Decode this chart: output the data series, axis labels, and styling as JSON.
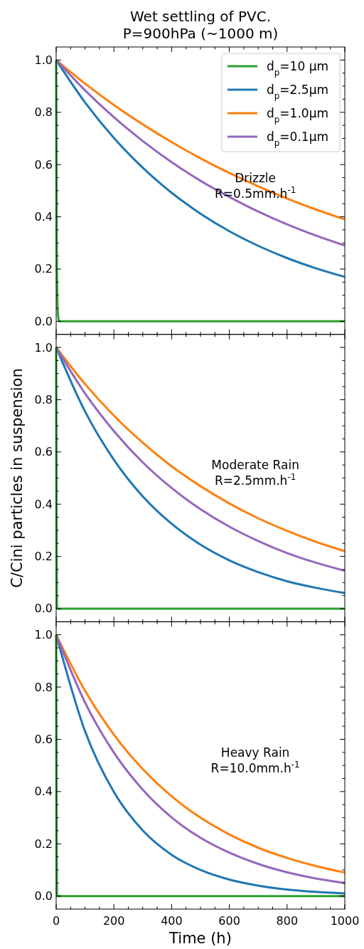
{
  "chart_data": [
    {
      "type": "line",
      "title": "Wet settling of PVC.\nP=900hPa (~1000 m)",
      "annotations": [
        "Drizzle",
        "R=0.5mm.h$^{-1}$"
      ],
      "xlim": [
        0,
        1000
      ],
      "ylim": [
        -0.05,
        1.05
      ],
      "xticks": [
        0,
        {
          "value": 50,
          "label": null
        },
        200,
        {
          "value": 100,
          "label": null
        },
        {
          "value": 150,
          "label": null
        },
        {
          "value": 250,
          "label": null
        },
        {
          "value": 300,
          "label": null
        },
        {
          "value": 350,
          "label": null
        },
        400,
        {
          "value": 450,
          "label": null
        },
        {
          "value": 500,
          "label": null
        },
        {
          "value": 550,
          "label": null
        },
        600,
        {
          "value": 650,
          "label": null
        },
        {
          "value": 700,
          "label": null
        },
        {
          "value": 750,
          "label": null
        },
        800,
        {
          "value": 850,
          "label": null
        },
        {
          "value": 900,
          "label": null
        },
        {
          "value": 950,
          "label": null
        },
        1000
      ],
      "yticks": [
        {
          "value": 0,
          "label": "0.0"
        },
        {
          "value": 0.05,
          "label": null
        },
        {
          "value": 0.1,
          "label": null
        },
        {
          "value": 0.15,
          "label": null
        },
        {
          "value": 0.2,
          "label": "0.2"
        },
        {
          "value": 0.25,
          "label": null
        },
        {
          "value": 0.3,
          "label": null
        },
        {
          "value": 0.35,
          "label": null
        },
        {
          "value": 0.4,
          "label": "0.4"
        },
        {
          "value": 0.45,
          "label": null
        },
        {
          "value": 0.5,
          "label": null
        },
        {
          "value": 0.55,
          "label": null
        },
        {
          "value": 0.6,
          "label": "0.6"
        },
        {
          "value": 0.65,
          "label": null
        },
        {
          "value": 0.7,
          "label": null
        },
        {
          "value": 0.75,
          "label": null
        },
        {
          "value": 0.8,
          "label": "0.8"
        },
        {
          "value": 0.85,
          "label": null
        },
        {
          "value": 0.9,
          "label": null
        },
        {
          "value": 0.95,
          "label": null
        },
        {
          "value": 1,
          "label": "1.0"
        }
      ],
      "tick_labels": "y",
      "legend": "top right",
      "grid": false,
      "series": [
        {
          "name": "d$_{p}$=10 μm",
          "color": "#2ca02c",
          "x": [
            0,
            2,
            5,
            10,
            1000
          ],
          "values": [
            1,
            0.3,
            0.05,
            0,
            0
          ]
        },
        {
          "name": "d$_{p}$=2.5μm",
          "color": "#1f77b4",
          "x": [
            0,
            100,
            200,
            300,
            400,
            500,
            600,
            700,
            800,
            900,
            1000
          ],
          "values": [
            1,
            0.838,
            0.702,
            0.588,
            0.492,
            0.412,
            0.345,
            0.289,
            0.242,
            0.203,
            0.17
          ]
        },
        {
          "name": "d$_{p}$=1.0μm",
          "color": "#ff7f0e",
          "x": [
            0,
            100,
            200,
            300,
            400,
            500,
            600,
            700,
            800,
            900,
            1000
          ],
          "values": [
            1,
            0.91,
            0.828,
            0.754,
            0.686,
            0.624,
            0.568,
            0.517,
            0.47,
            0.428,
            0.39
          ]
        },
        {
          "name": "d$_{p}$=0.1μm",
          "color": "#9467bd",
          "x": [
            0,
            100,
            200,
            300,
            400,
            500,
            600,
            700,
            800,
            900,
            1000
          ],
          "values": [
            1,
            0.884,
            0.781,
            0.69,
            0.609,
            0.538,
            0.476,
            0.42,
            0.371,
            0.328,
            0.29
          ]
        }
      ]
    },
    {
      "type": "line",
      "ylabel": "C/Cini particles in suspension",
      "annotations": [
        "Moderate Rain",
        "R=2.5mm.h$^{-1}$"
      ],
      "xlim": [
        0,
        1000
      ],
      "ylim": [
        -0.05,
        1.05
      ],
      "xticks": [
        0,
        {
          "value": 50,
          "label": null
        },
        200,
        {
          "value": 100,
          "label": null
        },
        {
          "value": 150,
          "label": null
        },
        {
          "value": 250,
          "label": null
        },
        {
          "value": 300,
          "label": null
        },
        {
          "value": 350,
          "label": null
        },
        400,
        {
          "value": 450,
          "label": null
        },
        {
          "value": 500,
          "label": null
        },
        {
          "value": 550,
          "label": null
        },
        600,
        {
          "value": 650,
          "label": null
        },
        {
          "value": 700,
          "label": null
        },
        {
          "value": 750,
          "label": null
        },
        800,
        {
          "value": 850,
          "label": null
        },
        {
          "value": 900,
          "label": null
        },
        {
          "value": 950,
          "label": null
        },
        1000
      ],
      "yticks": [
        {
          "value": 0,
          "label": "0.0"
        },
        {
          "value": 0.05,
          "label": null
        },
        {
          "value": 0.1,
          "label": null
        },
        {
          "value": 0.15,
          "label": null
        },
        {
          "value": 0.2,
          "label": "0.2"
        },
        {
          "value": 0.25,
          "label": null
        },
        {
          "value": 0.3,
          "label": null
        },
        {
          "value": 0.35,
          "label": null
        },
        {
          "value": 0.4,
          "label": "0.4"
        },
        {
          "value": 0.45,
          "label": null
        },
        {
          "value": 0.5,
          "label": null
        },
        {
          "value": 0.55,
          "label": null
        },
        {
          "value": 0.6,
          "label": "0.6"
        },
        {
          "value": 0.65,
          "label": null
        },
        {
          "value": 0.7,
          "label": null
        },
        {
          "value": 0.75,
          "label": null
        },
        {
          "value": 0.8,
          "label": "0.8"
        },
        {
          "value": 0.85,
          "label": null
        },
        {
          "value": 0.9,
          "label": null
        },
        {
          "value": 0.95,
          "label": null
        },
        {
          "value": 1,
          "label": "1.0"
        }
      ],
      "tick_labels": "y",
      "grid": false,
      "series": [
        {
          "color": "#2ca02c",
          "x": [
            0,
            3,
            1000
          ],
          "values": [
            1,
            0,
            0
          ]
        },
        {
          "color": "#1f77b4",
          "x": [
            0,
            100,
            200,
            300,
            400,
            500,
            600,
            700,
            800,
            900,
            1000
          ],
          "values": [
            1,
            0.755,
            0.57,
            0.43,
            0.325,
            0.245,
            0.185,
            0.14,
            0.105,
            0.08,
            0.06
          ]
        },
        {
          "color": "#ff7f0e",
          "x": [
            0,
            100,
            200,
            300,
            400,
            500,
            600,
            700,
            800,
            900,
            1000
          ],
          "values": [
            1,
            0.86,
            0.739,
            0.635,
            0.545,
            0.469,
            0.403,
            0.346,
            0.298,
            0.256,
            0.22
          ]
        },
        {
          "color": "#9467bd",
          "x": [
            0,
            100,
            200,
            300,
            400,
            500,
            600,
            700,
            800,
            900,
            1000
          ],
          "values": [
            1,
            0.824,
            0.68,
            0.56,
            0.462,
            0.381,
            0.314,
            0.259,
            0.213,
            0.176,
            0.145
          ]
        }
      ]
    },
    {
      "type": "line",
      "xlabel": "Time (h)",
      "annotations": [
        "Heavy Rain",
        "R=10.0mm.h$^{-1}$"
      ],
      "xlim": [
        0,
        1000
      ],
      "ylim": [
        -0.05,
        1.05
      ],
      "xticks": [
        0,
        {
          "value": 50,
          "label": null
        },
        200,
        {
          "value": 100,
          "label": null
        },
        {
          "value": 150,
          "label": null
        },
        {
          "value": 250,
          "label": null
        },
        {
          "value": 300,
          "label": null
        },
        {
          "value": 350,
          "label": null
        },
        400,
        {
          "value": 450,
          "label": null
        },
        {
          "value": 500,
          "label": null
        },
        {
          "value": 550,
          "label": null
        },
        600,
        {
          "value": 650,
          "label": null
        },
        {
          "value": 700,
          "label": null
        },
        {
          "value": 750,
          "label": null
        },
        800,
        {
          "value": 850,
          "label": null
        },
        {
          "value": 900,
          "label": null
        },
        {
          "value": 950,
          "label": null
        },
        1000
      ],
      "yticks": [
        {
          "value": 0,
          "label": "0.0"
        },
        {
          "value": 0.05,
          "label": null
        },
        {
          "value": 0.1,
          "label": null
        },
        {
          "value": 0.15,
          "label": null
        },
        {
          "value": 0.2,
          "label": "0.2"
        },
        {
          "value": 0.25,
          "label": null
        },
        {
          "value": 0.3,
          "label": null
        },
        {
          "value": 0.35,
          "label": null
        },
        {
          "value": 0.4,
          "label": "0.4"
        },
        {
          "value": 0.45,
          "label": null
        },
        {
          "value": 0.5,
          "label": null
        },
        {
          "value": 0.55,
          "label": null
        },
        {
          "value": 0.6,
          "label": "0.6"
        },
        {
          "value": 0.65,
          "label": null
        },
        {
          "value": 0.7,
          "label": null
        },
        {
          "value": 0.75,
          "label": null
        },
        {
          "value": 0.8,
          "label": "0.8"
        },
        {
          "value": 0.85,
          "label": null
        },
        {
          "value": 0.9,
          "label": null
        },
        {
          "value": 0.95,
          "label": null
        },
        {
          "value": 1,
          "label": "1.0"
        }
      ],
      "grid": false,
      "series": [
        {
          "color": "#2ca02c",
          "x": [
            0,
            3,
            1000
          ],
          "values": [
            1,
            0,
            0
          ]
        },
        {
          "color": "#1f77b4",
          "x": [
            0,
            100,
            200,
            300,
            400,
            500,
            600,
            700,
            800,
            900,
            1000
          ],
          "values": [
            1,
            0.631,
            0.398,
            0.251,
            0.158,
            0.1,
            0.063,
            0.04,
            0.025,
            0.016,
            0.01
          ]
        },
        {
          "color": "#ff7f0e",
          "x": [
            0,
            100,
            200,
            300,
            400,
            500,
            600,
            700,
            800,
            900,
            1000
          ],
          "values": [
            1,
            0.786,
            0.618,
            0.486,
            0.382,
            0.3,
            0.236,
            0.185,
            0.146,
            0.115,
            0.09
          ]
        },
        {
          "color": "#9467bd",
          "x": [
            0,
            100,
            200,
            300,
            400,
            500,
            600,
            700,
            800,
            900,
            1000
          ],
          "values": [
            1,
            0.741,
            0.549,
            0.407,
            0.301,
            0.223,
            0.166,
            0.123,
            0.091,
            0.067,
            0.05
          ]
        }
      ]
    }
  ]
}
